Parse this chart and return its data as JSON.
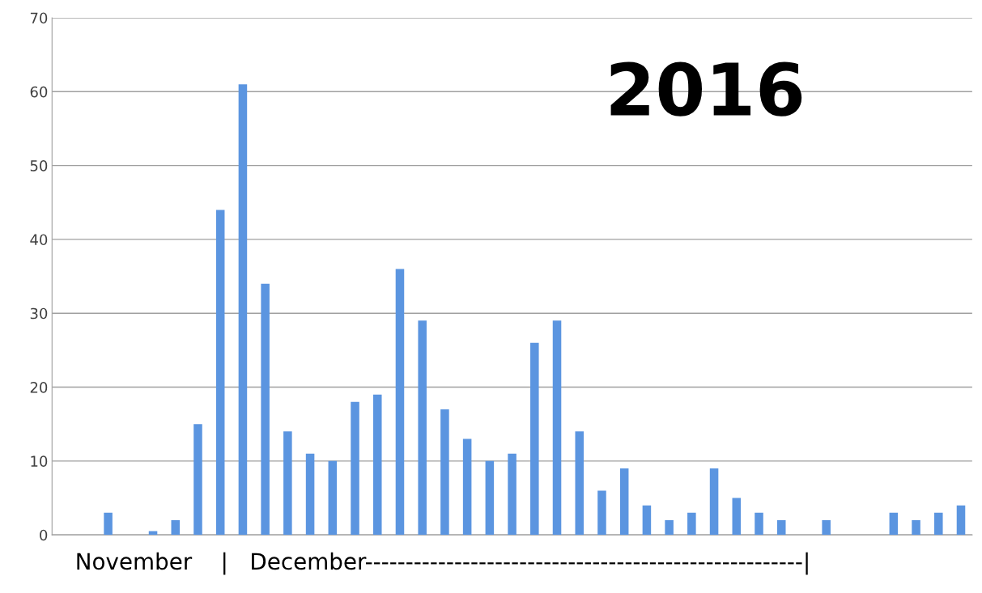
{
  "chart_data": {
    "type": "bar",
    "categories": [
      null,
      null,
      null,
      null,
      null,
      null,
      null,
      null,
      null,
      null,
      null,
      null,
      null,
      null,
      null,
      null,
      null,
      null,
      null,
      null,
      null,
      null,
      null,
      null,
      null,
      null,
      null,
      null,
      null,
      null,
      null,
      null,
      null,
      null,
      null,
      null,
      null,
      null,
      null,
      null,
      null
    ],
    "values": [
      0,
      0,
      3,
      0,
      0.5,
      2,
      15,
      44,
      61,
      34,
      14,
      11,
      10,
      18,
      19,
      36,
      29,
      17,
      13,
      10,
      11,
      26,
      29,
      14,
      6,
      9,
      4,
      2,
      3,
      9,
      5,
      3,
      2,
      0,
      2,
      0,
      0,
      3,
      2,
      3,
      4
    ],
    "color": "#5b95e0",
    "xlabel": "November    |   December------------------------------------------------------|",
    "annotations": [
      "2016"
    ],
    "ylim": [
      0,
      70
    ],
    "yticks": [
      0,
      10,
      20,
      30,
      40,
      50,
      60,
      70
    ],
    "grid": "y",
    "legend": false
  }
}
